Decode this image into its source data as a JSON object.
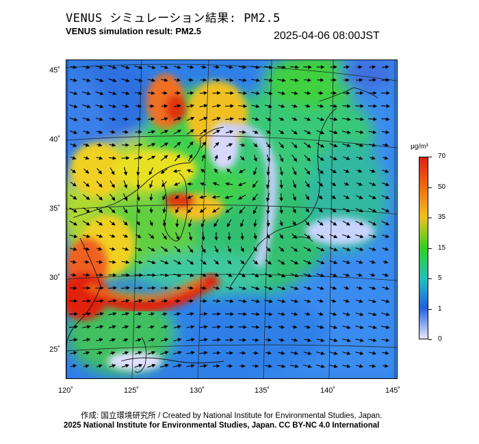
{
  "title_jp": "VENUS シミュレーション結果: PM2.5",
  "title_en": "VENUS simulation result: PM2.5",
  "timestamp": "2025-04-06 08:00JST",
  "latitude_labels": [
    "45˚",
    "40˚",
    "35˚",
    "30˚",
    "25˚"
  ],
  "longitude_labels": [
    "120˚",
    "125˚",
    "130˚",
    "135˚",
    "140˚",
    "145˚"
  ],
  "colorbar": {
    "unit": "μg/m³",
    "ticks": [
      "70",
      "50",
      "35",
      "15",
      "5",
      "1",
      "0"
    ],
    "colors": [
      "#e02010",
      "#f07010",
      "#f0c020",
      "#30d020",
      "#20c0c0",
      "#2060e0",
      "#e8e8ff"
    ]
  },
  "credits": {
    "line1": "作成: 国立環境研究所 / Created by National Institute for Environmental Studies, Japan.",
    "line2": "2025 National Institute for Environmental Studies, Japan. CC BY-NC 4.0 International"
  },
  "icons": [
    "wind-arrow-icon"
  ]
}
